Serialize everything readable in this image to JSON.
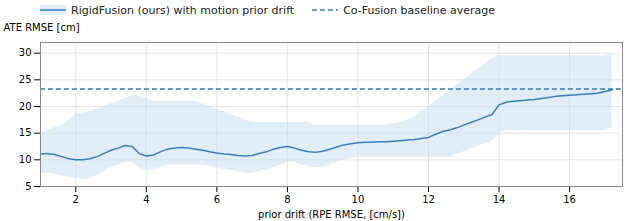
{
  "chart_data": {
    "type": "line",
    "xlabel": "prior drift (RPE RMSE, [cm/s])",
    "ylabel": "ATE RMSE [cm]",
    "xlim": [
      1,
      17.5
    ],
    "ylim": [
      5,
      32
    ],
    "xticks": [
      2,
      4,
      6,
      8,
      10,
      12,
      14,
      16
    ],
    "yticks": [
      5,
      10,
      15,
      20,
      25,
      30
    ],
    "grid": true,
    "legend": "upper left",
    "x": [
      1.0,
      1.2,
      1.4,
      1.6,
      1.8,
      2.0,
      2.2,
      2.4,
      2.6,
      2.8,
      3.0,
      3.2,
      3.4,
      3.6,
      3.8,
      4.0,
      4.2,
      4.4,
      4.6,
      4.8,
      5.0,
      5.2,
      5.4,
      5.6,
      5.8,
      6.0,
      6.2,
      6.4,
      6.6,
      6.8,
      7.0,
      7.2,
      7.4,
      7.6,
      7.8,
      8.0,
      8.2,
      8.4,
      8.6,
      8.8,
      9.0,
      9.2,
      9.4,
      9.6,
      9.8,
      10.0,
      10.2,
      10.4,
      10.6,
      10.8,
      11.0,
      11.2,
      11.4,
      11.6,
      11.8,
      12.0,
      12.2,
      12.4,
      12.6,
      12.8,
      13.0,
      13.2,
      13.4,
      13.6,
      13.8,
      14.0,
      14.2,
      14.4,
      14.6,
      14.8,
      15.0,
      15.2,
      15.4,
      15.6,
      15.8,
      16.0,
      16.2,
      16.4,
      16.6,
      16.8,
      17.0,
      17.2
    ],
    "series": [
      {
        "name": "RigidFusion (ours) with motion prior drift",
        "type": "line",
        "color": "#3a7ebf",
        "fill_color": "#c5ddf0",
        "line_style": "solid",
        "values": [
          11.1,
          11.2,
          11.0,
          10.6,
          10.2,
          10.0,
          10.0,
          10.2,
          10.6,
          11.2,
          11.8,
          12.2,
          12.7,
          12.5,
          11.2,
          10.7,
          10.9,
          11.5,
          12.0,
          12.2,
          12.3,
          12.2,
          12.0,
          11.8,
          11.5,
          11.3,
          11.1,
          11.0,
          10.8,
          10.7,
          10.8,
          11.2,
          11.5,
          12.0,
          12.3,
          12.5,
          12.2,
          11.8,
          11.5,
          11.4,
          11.6,
          12.0,
          12.4,
          12.8,
          13.0,
          13.2,
          13.3,
          13.3,
          13.4,
          13.4,
          13.5,
          13.6,
          13.7,
          13.8,
          14.0,
          14.2,
          14.8,
          15.3,
          15.6,
          16.0,
          16.5,
          17.0,
          17.5,
          18.0,
          18.5,
          20.3,
          20.8,
          21.0,
          21.1,
          21.2,
          21.3,
          21.5,
          21.7,
          21.9,
          22.0,
          22.1,
          22.2,
          22.3,
          22.4,
          22.5,
          22.8,
          23.1
        ],
        "lower": [
          7.5,
          7.5,
          7.3,
          7.0,
          6.8,
          6.5,
          6.3,
          6.5,
          7.0,
          7.8,
          8.5,
          9.0,
          9.5,
          9.5,
          8.5,
          8.0,
          8.2,
          8.5,
          9.0,
          9.0,
          9.0,
          9.0,
          9.0,
          9.0,
          8.8,
          8.5,
          8.2,
          8.0,
          7.8,
          7.5,
          7.5,
          7.8,
          8.0,
          8.5,
          9.0,
          9.5,
          9.5,
          9.0,
          8.8,
          8.5,
          8.5,
          9.0,
          9.5,
          10.0,
          10.2,
          10.5,
          10.5,
          10.5,
          10.5,
          10.5,
          10.5,
          10.5,
          10.5,
          10.5,
          10.5,
          10.5,
          10.5,
          10.5,
          10.5,
          11.0,
          11.5,
          12.0,
          12.5,
          13.0,
          13.5,
          15.0,
          15.5,
          15.5,
          15.5,
          15.5,
          15.5,
          15.5,
          15.5,
          15.5,
          15.5,
          15.5,
          15.5,
          15.5,
          15.5,
          15.5,
          15.5,
          16.0
        ],
        "upper": [
          15.0,
          15.5,
          16.0,
          16.5,
          17.5,
          18.5,
          18.8,
          19.0,
          19.5,
          20.0,
          20.5,
          21.0,
          21.5,
          22.0,
          22.0,
          21.5,
          21.0,
          21.0,
          21.0,
          21.0,
          21.0,
          21.0,
          21.0,
          20.5,
          20.0,
          19.5,
          19.0,
          18.5,
          18.0,
          17.5,
          17.0,
          17.0,
          17.0,
          17.0,
          17.0,
          17.0,
          17.0,
          17.0,
          17.0,
          16.5,
          16.5,
          16.5,
          16.5,
          16.5,
          16.5,
          16.5,
          16.5,
          16.5,
          16.5,
          16.5,
          16.8,
          17.0,
          17.5,
          18.0,
          19.0,
          20.0,
          21.0,
          22.0,
          23.0,
          24.0,
          25.0,
          26.0,
          27.0,
          28.0,
          29.0,
          29.5,
          29.5,
          29.5,
          29.5,
          29.5,
          29.5,
          29.5,
          29.5,
          29.5,
          29.5,
          29.5,
          29.5,
          29.5,
          29.5,
          29.5,
          29.5,
          30.0
        ]
      },
      {
        "name": "Co-Fusion baseline average",
        "type": "hline",
        "color": "#3a7ebf",
        "line_style": "dashed",
        "value": 23.3
      }
    ]
  }
}
